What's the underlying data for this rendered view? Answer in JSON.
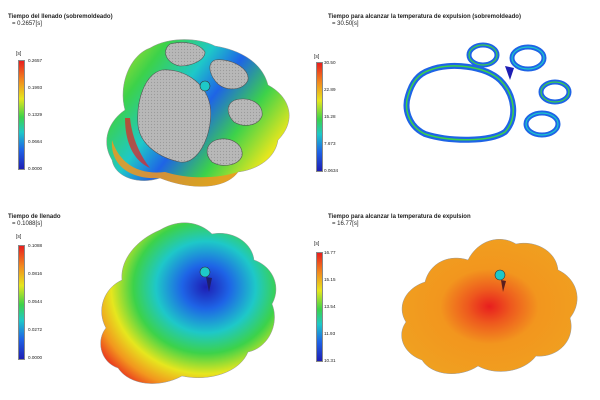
{
  "panels": [
    {
      "title_line1": "Tiempo del llenado (sobremoldeado)",
      "title_line2": "= 0.2657[s]",
      "unit": "[s]",
      "ticks": [
        "0.2657",
        "0.1993",
        "0.1329",
        "0.0664",
        "0.0000"
      ]
    },
    {
      "title_line1": "Tiempo para alcanzar la temperatura de expulsion (sobremoldeado)",
      "title_line2": "= 30.50[s]",
      "unit": "[s]",
      "ticks": [
        "30.50",
        "22.89",
        "15.28",
        "7.673",
        "0.0634"
      ]
    },
    {
      "title_line1": "Tiempo de llenado",
      "title_line2": "= 0.1088[s]",
      "unit": "[s]",
      "ticks": [
        "0.1088",
        "0.0816",
        "0.0544",
        "0.0272",
        "0.0000"
      ]
    },
    {
      "title_line1": "Tiempo para alcanzar la temperatura de expulsion",
      "title_line2": "= 16.77[s]",
      "unit": "[s]",
      "ticks": [
        "16.77",
        "15.15",
        "13.54",
        "11.93",
        "10.31"
      ]
    }
  ],
  "colors": {
    "red": "#e81e1e",
    "orange": "#f2961e",
    "yellow": "#e6e61e",
    "green": "#3cd24a",
    "cyan": "#1ec8c8",
    "blue": "#1e64e6",
    "navy": "#1e1eb4",
    "gray": "#b4b4b4"
  }
}
